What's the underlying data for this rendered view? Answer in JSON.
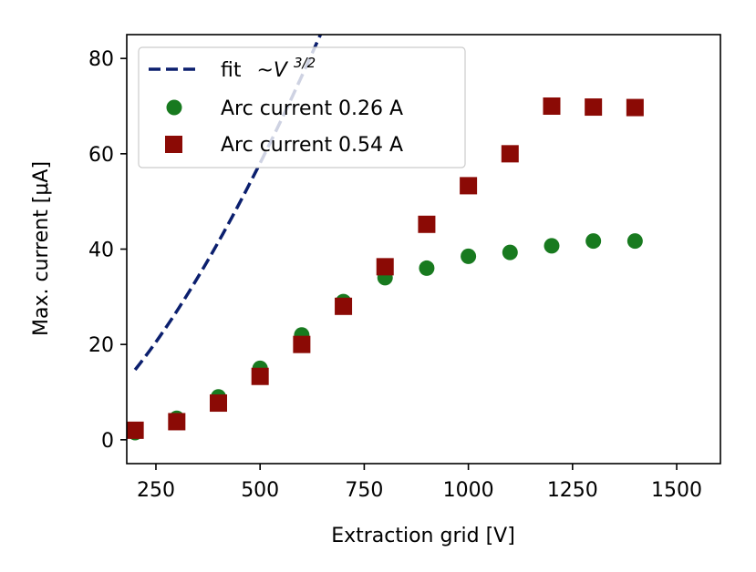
{
  "chart_data": {
    "type": "scatter",
    "xlabel": "Extraction grid [V]",
    "ylabel": "Max. current [μA]",
    "xlim": [
      180,
      1605
    ],
    "ylim": [
      -5,
      85
    ],
    "xticks": [
      250,
      500,
      750,
      1000,
      1250,
      1500
    ],
    "yticks": [
      0,
      20,
      40,
      60,
      80
    ],
    "grid": false,
    "legend_position": "top-left",
    "fit": {
      "name": "fit",
      "label_math": "~V",
      "label_exponent": "3/2",
      "style": "dashed",
      "color": "#0b1f6e",
      "formula": "k*V^1.5",
      "k": 0.00519,
      "x_range": [
        200,
        1600
      ]
    },
    "series": [
      {
        "name": "Arc current 0.26 A",
        "marker": "circle",
        "color": "#187a1f",
        "x": [
          200,
          300,
          400,
          500,
          600,
          700,
          800,
          900,
          1000,
          1100,
          1200,
          1300,
          1400
        ],
        "y": [
          1.5,
          4.5,
          9,
          15,
          22,
          29,
          34,
          36,
          38.5,
          39.3,
          40.7,
          41.7,
          41.7
        ]
      },
      {
        "name": "Arc current 0.54 A",
        "marker": "square",
        "color": "#8b0a05",
        "x": [
          200,
          300,
          400,
          500,
          600,
          700,
          800,
          900,
          1000,
          1100,
          1200,
          1300,
          1400
        ],
        "y": [
          2,
          3.8,
          7.7,
          13.3,
          20,
          28,
          36.3,
          45.2,
          53.3,
          60,
          70,
          69.8,
          69.7
        ]
      }
    ]
  }
}
